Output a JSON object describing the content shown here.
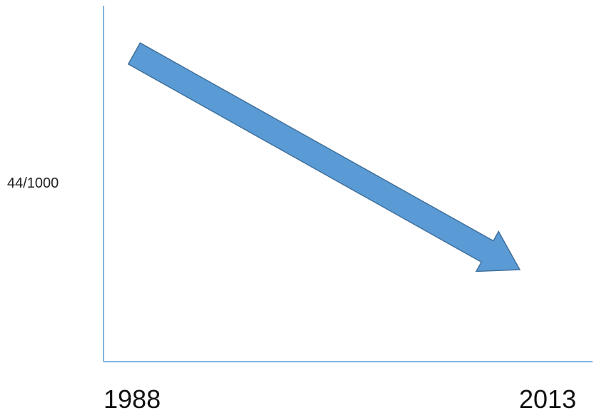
{
  "chart_data": {
    "type": "line",
    "title": "",
    "xlabel": "",
    "ylabel": "",
    "y_annotation": "44/1000",
    "x_ticks": [
      "1988",
      "2013"
    ],
    "x": [
      1988,
      2013
    ],
    "trend": "decreasing",
    "grid": false,
    "colors": {
      "axis": "#5b9bd5",
      "arrow_fill": "#5b9bd5",
      "arrow_stroke": "#41719c"
    }
  }
}
